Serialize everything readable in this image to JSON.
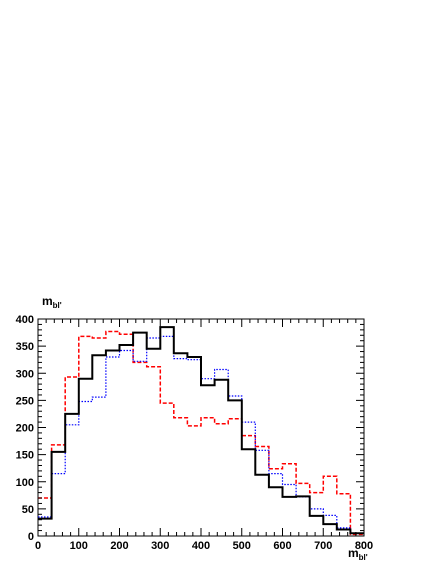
{
  "chart_data": {
    "type": "line",
    "style": "step-histogram",
    "xlabel": "m",
    "xlabel_sub": "bl'",
    "ylabel": "m",
    "ylabel_sub": "bl'",
    "xlim": [
      0,
      800
    ],
    "ylim": [
      0,
      400
    ],
    "x_ticks": [
      0,
      100,
      200,
      300,
      400,
      500,
      600,
      700,
      800
    ],
    "y_ticks": [
      0,
      50,
      100,
      150,
      200,
      250,
      300,
      350,
      400
    ],
    "grid": false,
    "bin_width": 33.33,
    "bin_edges_start": 0,
    "series": [
      {
        "line_style": "solid",
        "color": "#000000",
        "values": [
          32,
          155,
          225,
          290,
          333,
          342,
          352,
          375,
          345,
          385,
          337,
          330,
          278,
          288,
          250,
          160,
          113,
          90,
          72,
          73,
          37,
          22,
          12,
          5
        ]
      },
      {
        "line_style": "dotted",
        "color": "#0000ff",
        "values": [
          35,
          115,
          205,
          248,
          256,
          330,
          342,
          322,
          365,
          368,
          327,
          325,
          290,
          307,
          258,
          210,
          158,
          115,
          95,
          72,
          50,
          38,
          15,
          5
        ]
      },
      {
        "line_style": "dashed",
        "color": "#ff0000",
        "values": [
          70,
          168,
          293,
          368,
          365,
          377,
          372,
          320,
          312,
          245,
          218,
          203,
          218,
          207,
          216,
          185,
          165,
          124,
          133,
          97,
          80,
          110,
          78,
          3
        ]
      }
    ]
  }
}
